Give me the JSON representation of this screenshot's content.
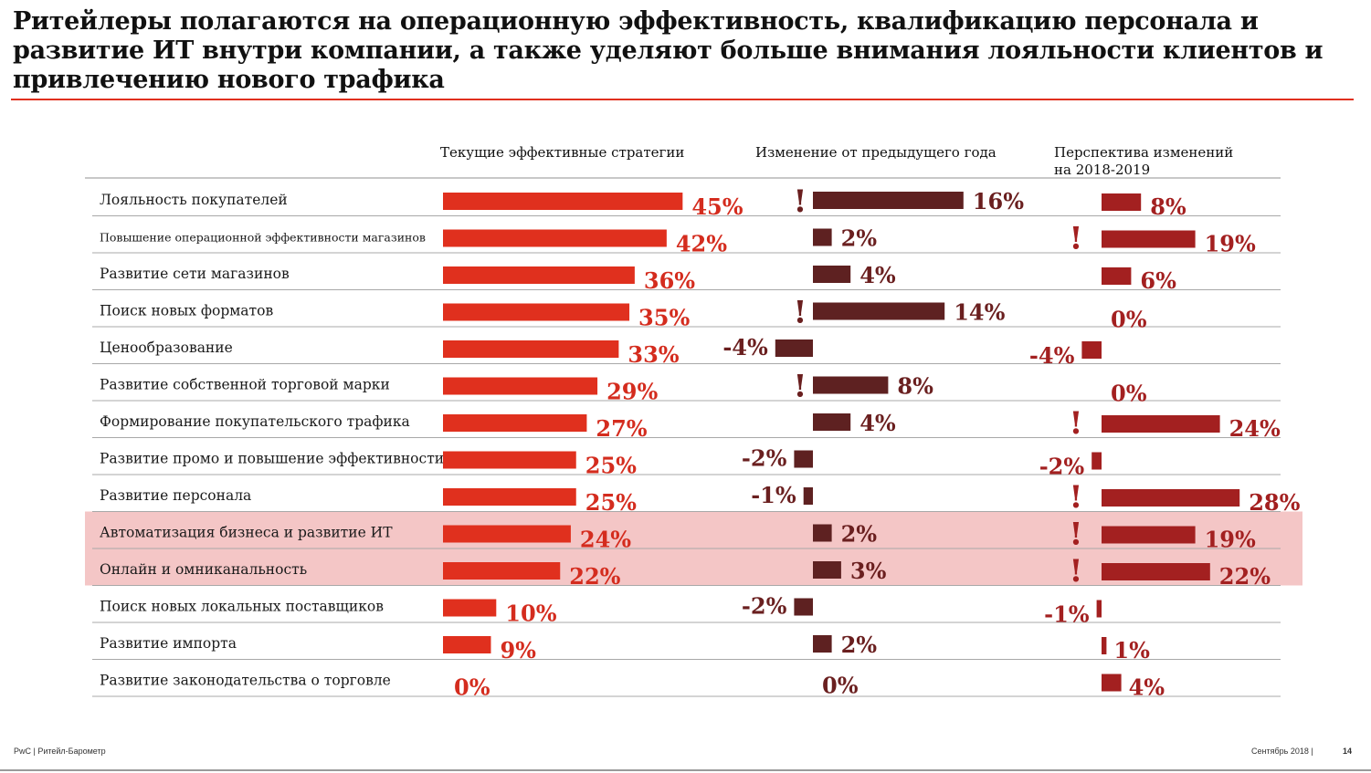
{
  "title": "Ритейлеры полагаются на операционную эффективность, квалификацию персонала и развитие ИТ внутри компании, а также уделяют больше внимания лояльности клиентов и привлечению нового трафика",
  "columns": {
    "current": "Текущие эффективные стратегии",
    "change": "Изменение от предыдущего года",
    "outlook_line1": "Перспектива изменений",
    "outlook_line2": "на 2018-2019"
  },
  "colors": {
    "current_bar": "#e0301e",
    "change_bar": "#5e2121",
    "outlook_bar": "#a32020",
    "value_text_red": "#d42c1e",
    "value_text_dark": "#6a1f1f",
    "highlight": "#f4c6c6",
    "row_line": "#a8a8a8"
  },
  "chart_data": {
    "type": "bar",
    "categories": [
      "Лояльность покупателей",
      "Повышение операционной эффективности магазинов",
      "Развитие сети магазинов",
      "Поиск новых форматов",
      "Ценообразование",
      "Развитие собственной торговой марки",
      "Формирование покупательского трафика",
      "Развитие промо и повышение эффективности",
      "Развитие персонала",
      "Автоматизация бизнеса и развитие ИТ",
      "Онлайн и омниканальность",
      "Поиск новых локальных поставщиков",
      "Развитие импорта",
      "Развитие законодательства о торговле"
    ],
    "series": [
      {
        "name": "Текущие эффективные стратегии",
        "values": [
          45,
          42,
          36,
          35,
          33,
          29,
          27,
          25,
          25,
          24,
          22,
          10,
          9,
          0
        ]
      },
      {
        "name": "Изменение от предыдущего года",
        "values": [
          16,
          2,
          4,
          14,
          -4,
          8,
          4,
          -2,
          -1,
          2,
          3,
          -2,
          2,
          0
        ]
      },
      {
        "name": "Перспектива изменений на 2018-2019",
        "values": [
          8,
          19,
          6,
          0,
          -4,
          0,
          24,
          -2,
          28,
          19,
          22,
          -1,
          1,
          4
        ]
      }
    ],
    "value_labels": [
      [
        "45%",
        "16%",
        "8%"
      ],
      [
        "42%",
        "2%",
        "19%"
      ],
      [
        "36%",
        "4%",
        "6%"
      ],
      [
        "35%",
        "14%",
        "0%"
      ],
      [
        "33%",
        "-4%",
        "-4%"
      ],
      [
        "29%",
        "8%",
        "0%"
      ],
      [
        "27%",
        "4%",
        "24%"
      ],
      [
        "25%",
        "-2%",
        "-2%"
      ],
      [
        "25%",
        "-1%",
        "28%"
      ],
      [
        "24%",
        "2%",
        "19%"
      ],
      [
        "22%",
        "3%",
        "22%"
      ],
      [
        "10%",
        "-2%",
        "-1%"
      ],
      [
        "9%",
        "2%",
        "1%"
      ],
      [
        "0%",
        "0%",
        "4%"
      ]
    ],
    "change_alerts": [
      0,
      3,
      5
    ],
    "outlook_alerts": [
      1,
      6,
      8,
      9,
      10
    ],
    "alert_symbol": "!",
    "highlighted_rows": [
      9,
      10
    ],
    "unit": "%"
  },
  "footer": {
    "left": "PwC  |      Ритейл-Барометр",
    "right": "Сентябрь 2018      |",
    "page": "14"
  }
}
